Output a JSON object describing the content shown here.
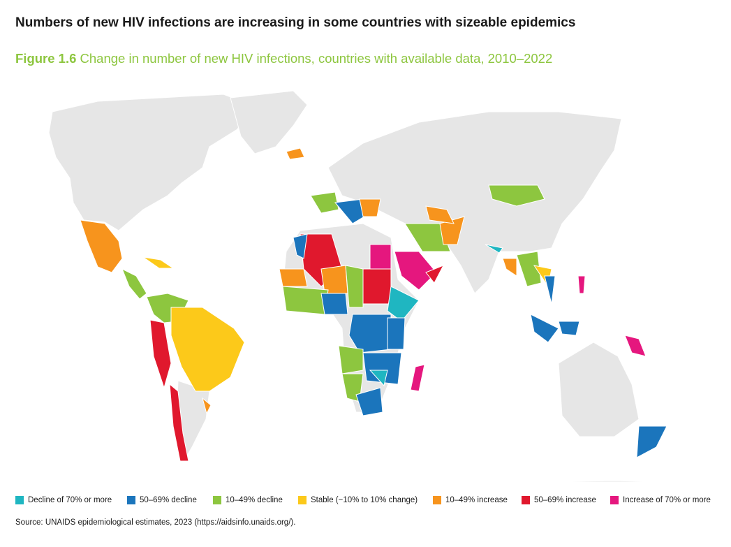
{
  "headline": "Numbers of new HIV infections are increasing in some countries with sizeable epidemics",
  "subtitle": {
    "figure_label": "Figure 1.6",
    "caption": "Change in number of new HIV infections, countries with available data, 2010–2022"
  },
  "legend": [
    {
      "key": "d70",
      "label": "Decline of 70% or more",
      "color": "#1fb6c1"
    },
    {
      "key": "d50",
      "label": "50–69% decline",
      "color": "#1b75bc"
    },
    {
      "key": "d10",
      "label": "10–49% decline",
      "color": "#8dc63f"
    },
    {
      "key": "st",
      "label": "Stable (−10% to 10% change)",
      "color": "#fcc91a"
    },
    {
      "key": "i10",
      "label": "10–49% increase",
      "color": "#f7941d"
    },
    {
      "key": "i50",
      "label": "50–69% increase",
      "color": "#e0182d"
    },
    {
      "key": "i70",
      "label": "Increase of 70% or more",
      "color": "#e5177e"
    }
  ],
  "no_data_color": "#e6e6e6",
  "source": "Source: UNAIDS epidemiological estimates, 2023 (https://aidsinfo.unaids.org/)."
}
